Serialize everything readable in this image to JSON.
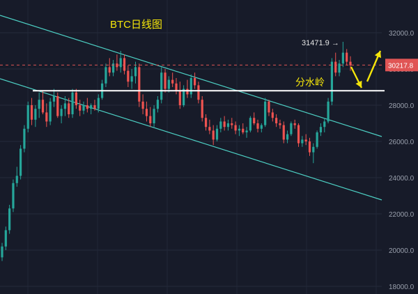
{
  "chart_data": {
    "type": "candlestick",
    "title": "BTC日线图",
    "xlabel": "",
    "ylabel": "",
    "ylim": [
      17500,
      33500
    ],
    "y_ticks": [
      18000,
      20000,
      22000,
      24000,
      26000,
      28000,
      30000,
      32000
    ],
    "y_tick_labels": [
      "18000.0",
      "20000.0",
      "22000.0",
      "24000.0",
      "26000.0",
      "28000.0",
      "30000.0",
      "32000.0"
    ],
    "grid": true,
    "current_price": 30217.8,
    "current_price_label": "30217.8",
    "peak_label": "31471.9",
    "peak_value": 31471.9,
    "watershed_label": "分水岭",
    "watershed_level": 28800,
    "colors": {
      "up": "#26a69a",
      "down": "#ef5350",
      "channel": "#4dd0c4",
      "title": "#f5e60a",
      "price_line": "#e05555",
      "price_tag_bg": "#e05555",
      "arrows": "#f5e60a",
      "watershed": "#ffffff",
      "axis_text": "#9aa0ad"
    },
    "series": [
      {
        "values": [
          [
            19600,
            20400,
            19400,
            20200
          ],
          [
            20200,
            21300,
            20000,
            21100
          ],
          [
            21100,
            22500,
            20900,
            22300
          ],
          [
            22300,
            23900,
            22100,
            23700
          ],
          [
            23700,
            24600,
            23500,
            24100
          ],
          [
            24100,
            25800,
            23900,
            25600
          ],
          [
            25600,
            26900,
            25400,
            26700
          ],
          [
            26700,
            28200,
            26500,
            28000
          ],
          [
            28000,
            28400,
            26900,
            27200
          ],
          [
            27200,
            28000,
            26800,
            27800
          ],
          [
            27800,
            28700,
            27300,
            28300
          ],
          [
            28300,
            28800,
            27500,
            27600
          ],
          [
            27600,
            28100,
            26800,
            27100
          ],
          [
            27100,
            28400,
            26900,
            28200
          ],
          [
            28200,
            28900,
            27900,
            28500
          ],
          [
            28500,
            28700,
            27300,
            27400
          ],
          [
            27400,
            28000,
            27000,
            27800
          ],
          [
            27800,
            28500,
            27400,
            28100
          ],
          [
            28100,
            28400,
            27300,
            27500
          ],
          [
            27500,
            28900,
            27300,
            28700
          ],
          [
            28700,
            28900,
            27800,
            28000
          ],
          [
            28000,
            28300,
            27400,
            27700
          ],
          [
            27700,
            28200,
            27500,
            28000
          ],
          [
            28000,
            28400,
            27600,
            27800
          ],
          [
            27800,
            28100,
            27500,
            28000
          ],
          [
            28000,
            28300,
            27700,
            27800
          ],
          [
            27800,
            28600,
            27600,
            28400
          ],
          [
            28400,
            29400,
            28300,
            29200
          ],
          [
            29200,
            30300,
            29000,
            30100
          ],
          [
            30100,
            30600,
            29600,
            29800
          ],
          [
            29800,
            30500,
            29600,
            30300
          ],
          [
            30300,
            30800,
            29900,
            30100
          ],
          [
            30100,
            31000,
            29800,
            30600
          ],
          [
            30600,
            30800,
            29700,
            29900
          ],
          [
            29900,
            30200,
            29000,
            29300
          ],
          [
            29300,
            30000,
            28900,
            29600
          ],
          [
            29600,
            30400,
            29200,
            30100
          ],
          [
            30100,
            30300,
            27900,
            28200
          ],
          [
            28200,
            28600,
            27500,
            27800
          ],
          [
            27800,
            28200,
            27100,
            27400
          ],
          [
            27400,
            27900,
            26800,
            27000
          ],
          [
            27000,
            28000,
            26800,
            27800
          ],
          [
            27800,
            28500,
            27600,
            28300
          ],
          [
            28300,
            30100,
            28100,
            29800
          ],
          [
            29800,
            30000,
            28700,
            28900
          ],
          [
            28900,
            29600,
            28700,
            29400
          ],
          [
            29400,
            29800,
            29000,
            29200
          ],
          [
            29200,
            29500,
            28600,
            28800
          ],
          [
            28800,
            29300,
            27800,
            28000
          ],
          [
            28000,
            29100,
            27900,
            28900
          ],
          [
            28900,
            29400,
            28400,
            28600
          ],
          [
            28600,
            29700,
            28400,
            29500
          ],
          [
            29500,
            29800,
            28900,
            29100
          ],
          [
            29100,
            29300,
            28100,
            28300
          ],
          [
            28300,
            28500,
            27100,
            27300
          ],
          [
            27300,
            27500,
            26600,
            26800
          ],
          [
            26800,
            27200,
            26400,
            26600
          ],
          [
            26600,
            26900,
            25800,
            26100
          ],
          [
            26100,
            26900,
            26000,
            26700
          ],
          [
            26700,
            27300,
            26500,
            27100
          ],
          [
            27100,
            27400,
            26600,
            26800
          ],
          [
            26800,
            27200,
            26600,
            27000
          ],
          [
            27000,
            27300,
            26700,
            26900
          ],
          [
            26900,
            27100,
            26400,
            26600
          ],
          [
            26600,
            26900,
            26300,
            26700
          ],
          [
            26700,
            27000,
            26400,
            26500
          ],
          [
            26500,
            26800,
            26200,
            26600
          ],
          [
            26600,
            27400,
            26500,
            27300
          ],
          [
            27300,
            27600,
            26900,
            27000
          ],
          [
            27000,
            27200,
            26500,
            26700
          ],
          [
            26700,
            27000,
            26500,
            26900
          ],
          [
            26900,
            28400,
            26800,
            28200
          ],
          [
            28200,
            28300,
            27400,
            27600
          ],
          [
            27600,
            27800,
            27100,
            27300
          ],
          [
            27300,
            27500,
            26800,
            27000
          ],
          [
            27000,
            27200,
            26700,
            26900
          ],
          [
            26900,
            27100,
            25900,
            26100
          ],
          [
            26100,
            26600,
            25900,
            26400
          ],
          [
            26400,
            27100,
            26300,
            27000
          ],
          [
            27000,
            27200,
            26700,
            26900
          ],
          [
            26900,
            27000,
            25700,
            25900
          ],
          [
            25900,
            26300,
            25700,
            26100
          ],
          [
            26100,
            26400,
            25800,
            26000
          ],
          [
            26000,
            26200,
            25200,
            25400
          ],
          [
            25400,
            25900,
            24800,
            25700
          ],
          [
            25700,
            26600,
            25600,
            26500
          ],
          [
            26500,
            27000,
            26300,
            26800
          ],
          [
            26800,
            27300,
            26500,
            27100
          ],
          [
            27100,
            28400,
            27000,
            28200
          ],
          [
            28200,
            30600,
            28000,
            30400
          ],
          [
            30400,
            30900,
            29600,
            29800
          ],
          [
            29800,
            30500,
            29600,
            30300
          ],
          [
            30300,
            31500,
            30100,
            30900
          ],
          [
            30900,
            31100,
            30200,
            30400
          ],
          [
            30400,
            30700,
            29900,
            30200
          ]
        ]
      }
    ]
  }
}
